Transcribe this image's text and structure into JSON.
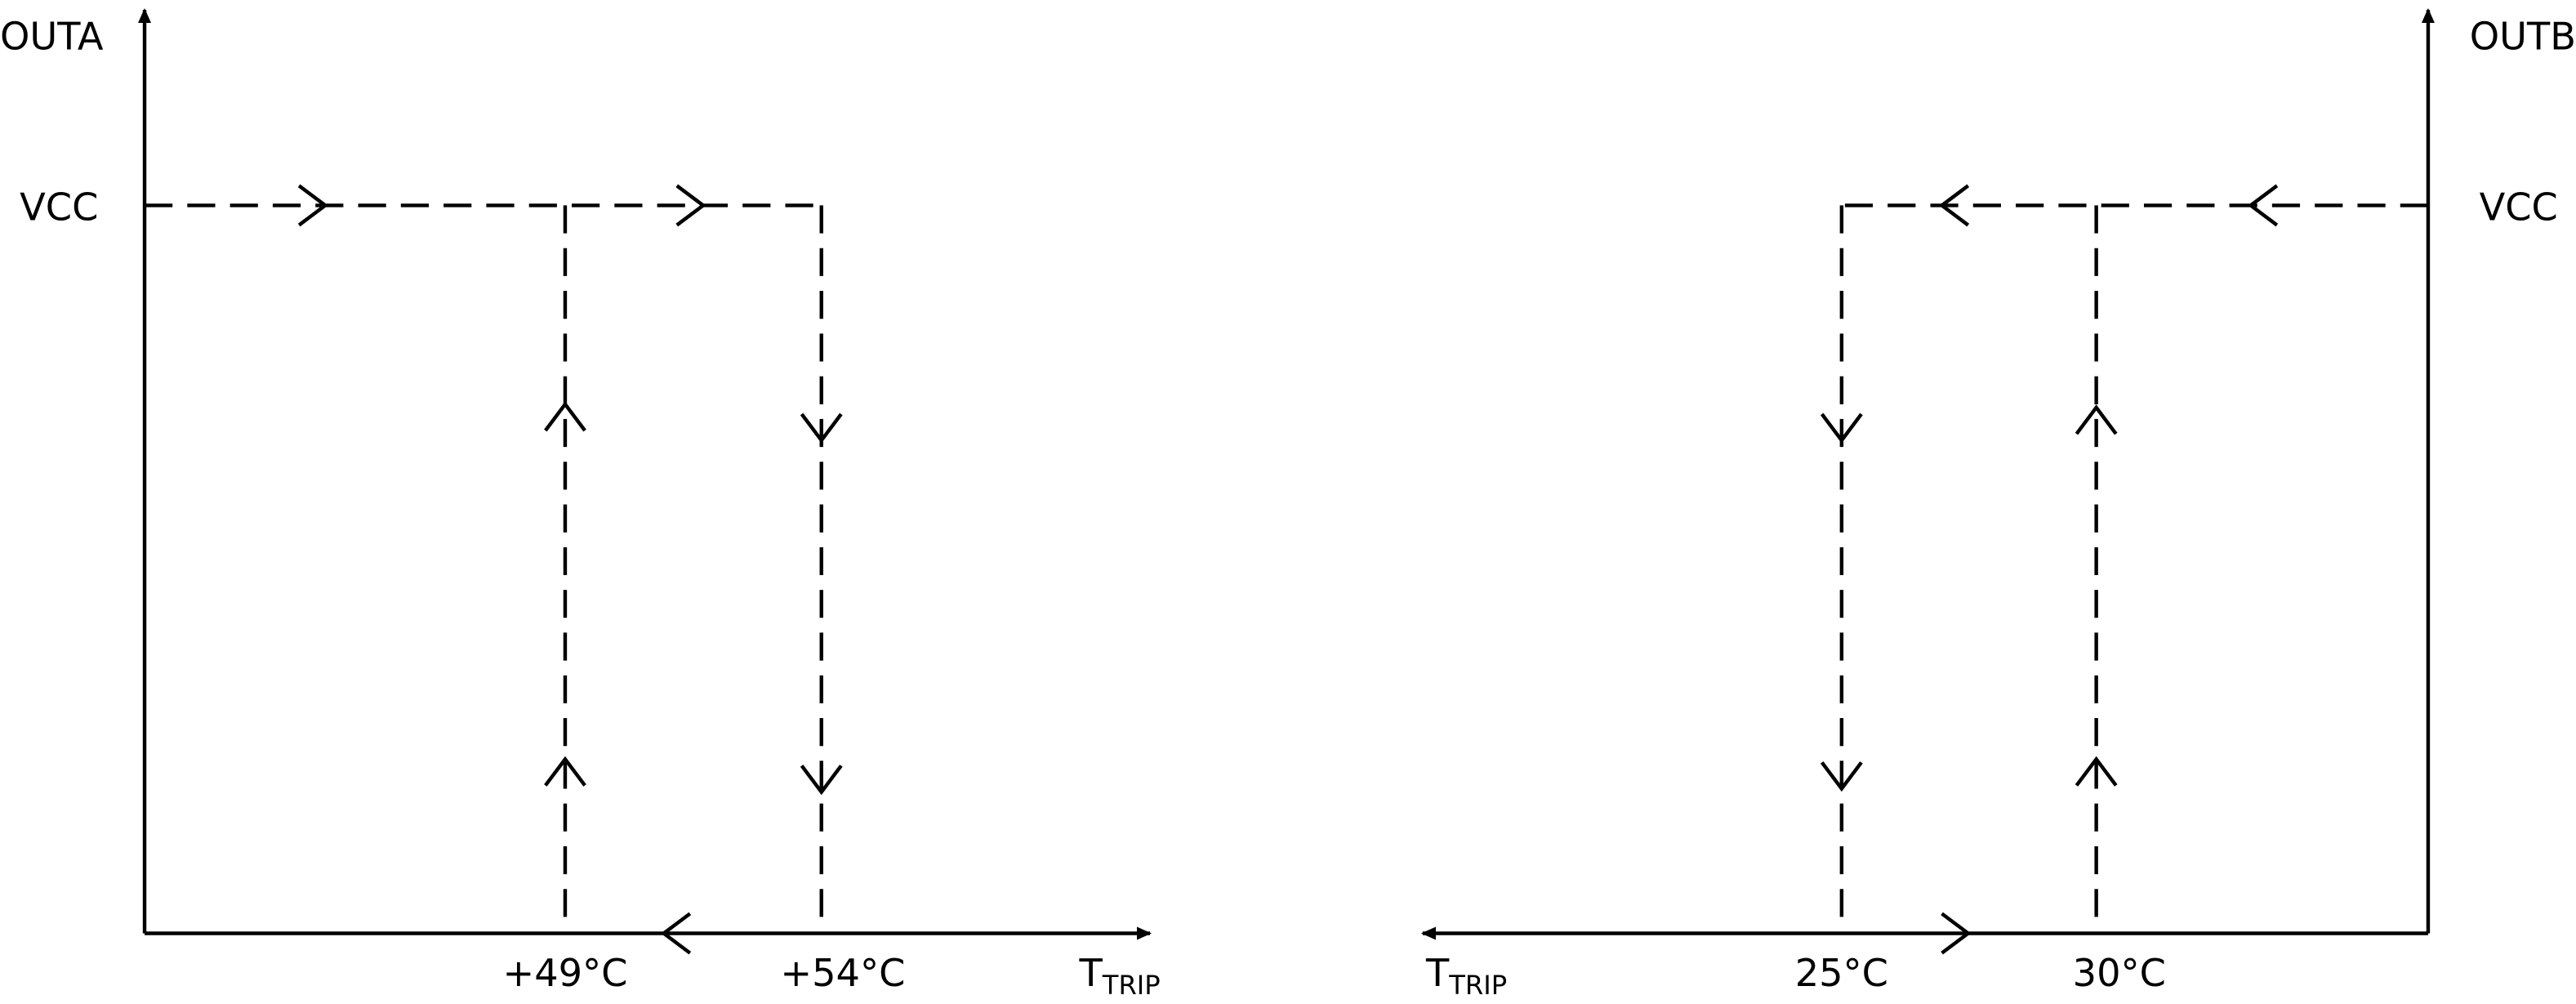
{
  "left": {
    "y_axis_label": "OUTA",
    "level_label": "VCC",
    "thresholds": [
      "+49°C",
      "+54°C"
    ],
    "x_axis_label": {
      "main": "T",
      "subscript": "TRIP"
    }
  },
  "right": {
    "y_axis_label": "OUTB",
    "level_label": "VCC",
    "thresholds": [
      "25°C",
      "30°C"
    ],
    "x_axis_label": {
      "main": "T",
      "subscript": "TRIP"
    }
  }
}
